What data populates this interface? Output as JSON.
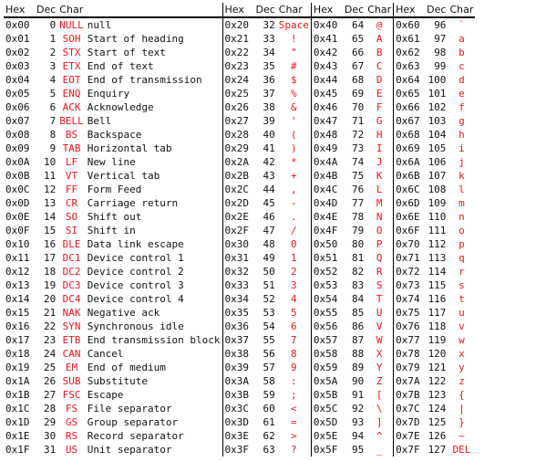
{
  "headers": [
    "Hex",
    "Dec",
    "Char"
  ],
  "accent_color": "#e8191e",
  "groups": [
    {
      "rows": [
        {
          "hex": "0x00",
          "dec": "0",
          "abbr": "NULL",
          "desc": "null"
        },
        {
          "hex": "0x01",
          "dec": "1",
          "abbr": "SOH",
          "desc": "Start of heading"
        },
        {
          "hex": "0x02",
          "dec": "2",
          "abbr": "STX",
          "desc": "Start of text"
        },
        {
          "hex": "0x03",
          "dec": "3",
          "abbr": "ETX",
          "desc": "End of text"
        },
        {
          "hex": "0x04",
          "dec": "4",
          "abbr": "EOT",
          "desc": "End of transmission"
        },
        {
          "hex": "0x05",
          "dec": "5",
          "abbr": "ENQ",
          "desc": "Enquiry"
        },
        {
          "hex": "0x06",
          "dec": "6",
          "abbr": "ACK",
          "desc": "Acknowledge"
        },
        {
          "hex": "0x07",
          "dec": "7",
          "abbr": "BELL",
          "desc": "Bell"
        },
        {
          "hex": "0x08",
          "dec": "8",
          "abbr": "BS",
          "desc": "Backspace"
        },
        {
          "hex": "0x09",
          "dec": "9",
          "abbr": "TAB",
          "desc": "Horizontal tab"
        },
        {
          "hex": "0x0A",
          "dec": "10",
          "abbr": "LF",
          "desc": "New line"
        },
        {
          "hex": "0x0B",
          "dec": "11",
          "abbr": "VT",
          "desc": "Vertical tab"
        },
        {
          "hex": "0x0C",
          "dec": "12",
          "abbr": "FF",
          "desc": "Form Feed"
        },
        {
          "hex": "0x0D",
          "dec": "13",
          "abbr": "CR",
          "desc": "Carriage return"
        },
        {
          "hex": "0x0E",
          "dec": "14",
          "abbr": "SO",
          "desc": "Shift out"
        },
        {
          "hex": "0x0F",
          "dec": "15",
          "abbr": "SI",
          "desc": "Shift in"
        },
        {
          "hex": "0x10",
          "dec": "16",
          "abbr": "DLE",
          "desc": "Data link escape"
        },
        {
          "hex": "0x11",
          "dec": "17",
          "abbr": "DC1",
          "desc": "Device control 1"
        },
        {
          "hex": "0x12",
          "dec": "18",
          "abbr": "DC2",
          "desc": "Device control 2"
        },
        {
          "hex": "0x13",
          "dec": "19",
          "abbr": "DC3",
          "desc": "Device control 3"
        },
        {
          "hex": "0x14",
          "dec": "20",
          "abbr": "DC4",
          "desc": "Device control 4"
        },
        {
          "hex": "0x15",
          "dec": "21",
          "abbr": "NAK",
          "desc": "Negative ack"
        },
        {
          "hex": "0x16",
          "dec": "22",
          "abbr": "SYN",
          "desc": "Synchronous idle"
        },
        {
          "hex": "0x17",
          "dec": "23",
          "abbr": "ETB",
          "desc": "End transmission block"
        },
        {
          "hex": "0x18",
          "dec": "24",
          "abbr": "CAN",
          "desc": "Cancel"
        },
        {
          "hex": "0x19",
          "dec": "25",
          "abbr": "EM",
          "desc": "End of medium"
        },
        {
          "hex": "0x1A",
          "dec": "26",
          "abbr": "SUB",
          "desc": "Substitute"
        },
        {
          "hex": "0x1B",
          "dec": "27",
          "abbr": "FSC",
          "desc": "Escape"
        },
        {
          "hex": "0x1C",
          "dec": "28",
          "abbr": "FS",
          "desc": "File separator"
        },
        {
          "hex": "0x1D",
          "dec": "29",
          "abbr": "GS",
          "desc": "Group separator"
        },
        {
          "hex": "0x1E",
          "dec": "30",
          "abbr": "RS",
          "desc": "Record separator"
        },
        {
          "hex": "0x1F",
          "dec": "31",
          "abbr": "US",
          "desc": "Unit separator"
        }
      ]
    },
    {
      "rows": [
        {
          "hex": "0x20",
          "dec": "32",
          "char": "Space"
        },
        {
          "hex": "0x21",
          "dec": "33",
          "char": "!"
        },
        {
          "hex": "0x22",
          "dec": "34",
          "char": "\""
        },
        {
          "hex": "0x23",
          "dec": "35",
          "char": "#"
        },
        {
          "hex": "0x24",
          "dec": "36",
          "char": "$"
        },
        {
          "hex": "0x25",
          "dec": "37",
          "char": "%"
        },
        {
          "hex": "0x26",
          "dec": "38",
          "char": "&"
        },
        {
          "hex": "0x27",
          "dec": "39",
          "char": "'"
        },
        {
          "hex": "0x28",
          "dec": "40",
          "char": "("
        },
        {
          "hex": "0x29",
          "dec": "41",
          "char": ")"
        },
        {
          "hex": "0x2A",
          "dec": "42",
          "char": "*"
        },
        {
          "hex": "0x2B",
          "dec": "43",
          "char": "+"
        },
        {
          "hex": "0x2C",
          "dec": "44",
          "char": ","
        },
        {
          "hex": "0x2D",
          "dec": "45",
          "char": "-"
        },
        {
          "hex": "0x2E",
          "dec": "46",
          "char": "."
        },
        {
          "hex": "0x2F",
          "dec": "47",
          "char": "/"
        },
        {
          "hex": "0x30",
          "dec": "48",
          "char": "0"
        },
        {
          "hex": "0x31",
          "dec": "49",
          "char": "1"
        },
        {
          "hex": "0x32",
          "dec": "50",
          "char": "2"
        },
        {
          "hex": "0x33",
          "dec": "51",
          "char": "3"
        },
        {
          "hex": "0x34",
          "dec": "52",
          "char": "4"
        },
        {
          "hex": "0x35",
          "dec": "53",
          "char": "5"
        },
        {
          "hex": "0x36",
          "dec": "54",
          "char": "6"
        },
        {
          "hex": "0x37",
          "dec": "55",
          "char": "7"
        },
        {
          "hex": "0x38",
          "dec": "56",
          "char": "8"
        },
        {
          "hex": "0x39",
          "dec": "57",
          "char": "9"
        },
        {
          "hex": "0x3A",
          "dec": "58",
          "char": ":"
        },
        {
          "hex": "0x3B",
          "dec": "59",
          "char": ";"
        },
        {
          "hex": "0x3C",
          "dec": "60",
          "char": "<"
        },
        {
          "hex": "0x3D",
          "dec": "61",
          "char": "="
        },
        {
          "hex": "0x3E",
          "dec": "62",
          "char": ">"
        },
        {
          "hex": "0x3F",
          "dec": "63",
          "char": "?"
        }
      ]
    },
    {
      "rows": [
        {
          "hex": "0x40",
          "dec": "64",
          "char": "@"
        },
        {
          "hex": "0x41",
          "dec": "65",
          "char": "A"
        },
        {
          "hex": "0x42",
          "dec": "66",
          "char": "B"
        },
        {
          "hex": "0x43",
          "dec": "67",
          "char": "C"
        },
        {
          "hex": "0x44",
          "dec": "68",
          "char": "D"
        },
        {
          "hex": "0x45",
          "dec": "69",
          "char": "E"
        },
        {
          "hex": "0x46",
          "dec": "70",
          "char": "F"
        },
        {
          "hex": "0x47",
          "dec": "71",
          "char": "G"
        },
        {
          "hex": "0x48",
          "dec": "72",
          "char": "H"
        },
        {
          "hex": "0x49",
          "dec": "73",
          "char": "I"
        },
        {
          "hex": "0x4A",
          "dec": "74",
          "char": "J"
        },
        {
          "hex": "0x4B",
          "dec": "75",
          "char": "K"
        },
        {
          "hex": "0x4C",
          "dec": "76",
          "char": "L"
        },
        {
          "hex": "0x4D",
          "dec": "77",
          "char": "M"
        },
        {
          "hex": "0x4E",
          "dec": "78",
          "char": "N"
        },
        {
          "hex": "0x4F",
          "dec": "79",
          "char": "O"
        },
        {
          "hex": "0x50",
          "dec": "80",
          "char": "P"
        },
        {
          "hex": "0x51",
          "dec": "81",
          "char": "Q"
        },
        {
          "hex": "0x52",
          "dec": "82",
          "char": "R"
        },
        {
          "hex": "0x53",
          "dec": "83",
          "char": "S"
        },
        {
          "hex": "0x54",
          "dec": "84",
          "char": "T"
        },
        {
          "hex": "0x55",
          "dec": "85",
          "char": "U"
        },
        {
          "hex": "0x56",
          "dec": "86",
          "char": "V"
        },
        {
          "hex": "0x57",
          "dec": "87",
          "char": "W"
        },
        {
          "hex": "0x58",
          "dec": "88",
          "char": "X"
        },
        {
          "hex": "0x59",
          "dec": "89",
          "char": "Y"
        },
        {
          "hex": "0x5A",
          "dec": "90",
          "char": "Z"
        },
        {
          "hex": "0x5B",
          "dec": "91",
          "char": "["
        },
        {
          "hex": "0x5C",
          "dec": "92",
          "char": "\\"
        },
        {
          "hex": "0x5D",
          "dec": "93",
          "char": "]"
        },
        {
          "hex": "0x5E",
          "dec": "94",
          "char": "^"
        },
        {
          "hex": "0x5F",
          "dec": "95",
          "char": "_"
        }
      ]
    },
    {
      "rows": [
        {
          "hex": "0x60",
          "dec": "96",
          "char": "`"
        },
        {
          "hex": "0x61",
          "dec": "97",
          "char": "a"
        },
        {
          "hex": "0x62",
          "dec": "98",
          "char": "b"
        },
        {
          "hex": "0x63",
          "dec": "99",
          "char": "c"
        },
        {
          "hex": "0x64",
          "dec": "100",
          "char": "d"
        },
        {
          "hex": "0x65",
          "dec": "101",
          "char": "e"
        },
        {
          "hex": "0x66",
          "dec": "102",
          "char": "f"
        },
        {
          "hex": "0x67",
          "dec": "103",
          "char": "g"
        },
        {
          "hex": "0x68",
          "dec": "104",
          "char": "h"
        },
        {
          "hex": "0x69",
          "dec": "105",
          "char": "i"
        },
        {
          "hex": "0x6A",
          "dec": "106",
          "char": "j"
        },
        {
          "hex": "0x6B",
          "dec": "107",
          "char": "k"
        },
        {
          "hex": "0x6C",
          "dec": "108",
          "char": "l"
        },
        {
          "hex": "0x6D",
          "dec": "109",
          "char": "m"
        },
        {
          "hex": "0x6E",
          "dec": "110",
          "char": "n"
        },
        {
          "hex": "0x6F",
          "dec": "111",
          "char": "o"
        },
        {
          "hex": "0x70",
          "dec": "112",
          "char": "p"
        },
        {
          "hex": "0x71",
          "dec": "113",
          "char": "q"
        },
        {
          "hex": "0x72",
          "dec": "114",
          "char": "r"
        },
        {
          "hex": "0x73",
          "dec": "115",
          "char": "s"
        },
        {
          "hex": "0x74",
          "dec": "116",
          "char": "t"
        },
        {
          "hex": "0x75",
          "dec": "117",
          "char": "u"
        },
        {
          "hex": "0x76",
          "dec": "118",
          "char": "v"
        },
        {
          "hex": "0x77",
          "dec": "119",
          "char": "w"
        },
        {
          "hex": "0x78",
          "dec": "120",
          "char": "x"
        },
        {
          "hex": "0x79",
          "dec": "121",
          "char": "y"
        },
        {
          "hex": "0x7A",
          "dec": "122",
          "char": "z"
        },
        {
          "hex": "0x7B",
          "dec": "123",
          "char": "{"
        },
        {
          "hex": "0x7C",
          "dec": "124",
          "char": "|"
        },
        {
          "hex": "0x7D",
          "dec": "125",
          "char": "}"
        },
        {
          "hex": "0x7E",
          "dec": "126",
          "char": "~"
        },
        {
          "hex": "0x7F",
          "dec": "127",
          "char": "DEL"
        }
      ]
    }
  ]
}
